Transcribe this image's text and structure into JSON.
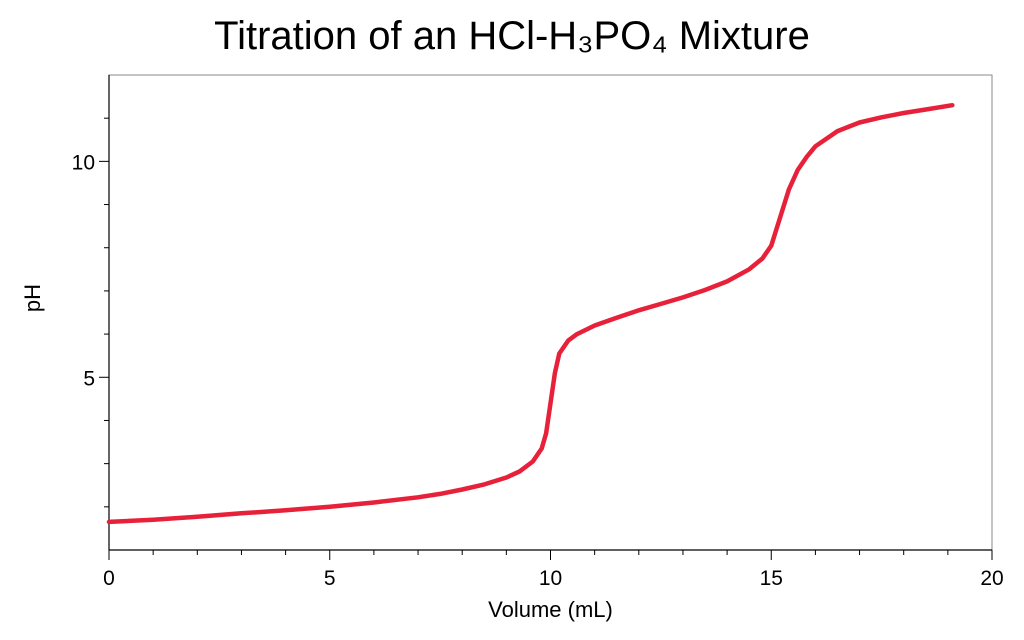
{
  "chart_data": {
    "type": "line",
    "title": "Titration of an HCl-H₃PO₄ Mixture",
    "xlabel": "Volume (mL)",
    "ylabel": "pH",
    "xlim": [
      0,
      20
    ],
    "ylim": [
      1,
      12
    ],
    "x_ticks": [
      "0",
      "5",
      "10",
      "15",
      "20"
    ],
    "y_ticks": [
      "5",
      "10"
    ],
    "grid": false,
    "colors": {
      "series": "#e8213a",
      "axis": "#000000",
      "ylabel": "#e8213a"
    },
    "series": [
      {
        "x": [
          0,
          1,
          2,
          3,
          4,
          5,
          6,
          7,
          7.5,
          8,
          8.5,
          9,
          9.3,
          9.6,
          9.8,
          9.9,
          10.0,
          10.1,
          10.2,
          10.4,
          10.6,
          11,
          11.5,
          12,
          12.5,
          13,
          13.5,
          14,
          14.5,
          14.8,
          15.0,
          15.2,
          15.4,
          15.6,
          15.8,
          16,
          16.5,
          17,
          17.5,
          18,
          18.5,
          19.1
        ],
        "y": [
          1.65,
          1.7,
          1.77,
          1.85,
          1.92,
          2.0,
          2.1,
          2.22,
          2.3,
          2.4,
          2.52,
          2.68,
          2.82,
          3.05,
          3.35,
          3.7,
          4.4,
          5.1,
          5.55,
          5.85,
          6.0,
          6.2,
          6.38,
          6.55,
          6.7,
          6.85,
          7.02,
          7.22,
          7.5,
          7.75,
          8.05,
          8.7,
          9.35,
          9.8,
          10.1,
          10.35,
          10.7,
          10.9,
          11.02,
          11.12,
          11.2,
          11.3
        ]
      }
    ]
  }
}
